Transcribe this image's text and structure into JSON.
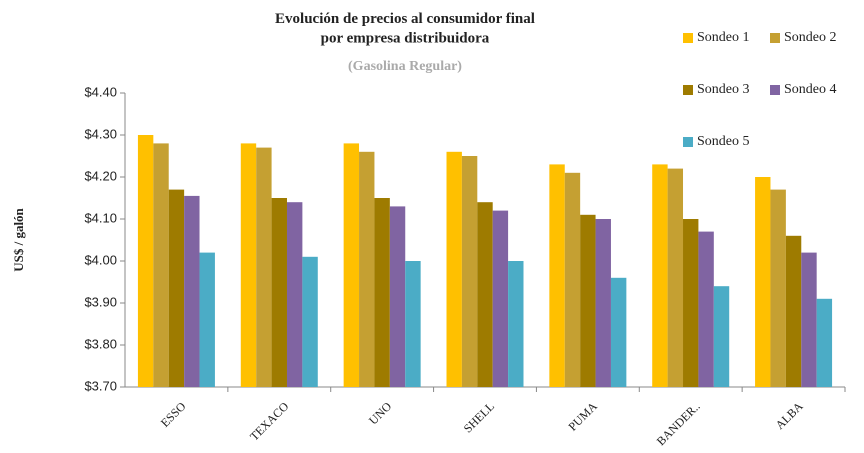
{
  "chart_data": {
    "type": "bar",
    "title": "Evolución de precios al consumidor final\npor empresa distribuidora",
    "subtitle": "(Gasolina Regular)",
    "y_label": "US$ / galón",
    "categories": [
      "ESSO",
      "TEXACO",
      "UNO",
      "SHELL",
      "PUMA",
      "BANDER..",
      "ALBA"
    ],
    "series": [
      {
        "name": "Sondeo 1",
        "color": "#FFC000",
        "values": [
          4.3,
          4.28,
          4.28,
          4.26,
          4.23,
          4.23,
          4.2
        ]
      },
      {
        "name": "Sondeo 2",
        "color": "#C5A032",
        "values": [
          4.28,
          4.27,
          4.26,
          4.25,
          4.21,
          4.22,
          4.17
        ]
      },
      {
        "name": "Sondeo 3",
        "color": "#9E7B00",
        "values": [
          4.17,
          4.15,
          4.15,
          4.14,
          4.11,
          4.1,
          4.06
        ]
      },
      {
        "name": "Sondeo 4",
        "color": "#8064A2",
        "values": [
          4.155,
          4.14,
          4.13,
          4.12,
          4.1,
          4.07,
          4.02
        ]
      },
      {
        "name": "Sondeo 5",
        "color": "#4BACC6",
        "values": [
          4.02,
          4.01,
          4.0,
          4.0,
          3.96,
          3.94,
          3.91
        ]
      }
    ],
    "ylim": [
      3.7,
      4.4
    ],
    "yticks": [
      {
        "value": 3.7,
        "label": "$3.70"
      },
      {
        "value": 3.8,
        "label": "$3.80"
      },
      {
        "value": 3.9,
        "label": "$3.90"
      },
      {
        "value": 4.0,
        "label": "$4.00"
      },
      {
        "value": 4.1,
        "label": "$4.10"
      },
      {
        "value": 4.2,
        "label": "$4.20"
      },
      {
        "value": 4.3,
        "label": "$4.30"
      },
      {
        "value": 4.4,
        "label": "$4.40"
      }
    ],
    "grid": false,
    "legend": "top-right"
  }
}
